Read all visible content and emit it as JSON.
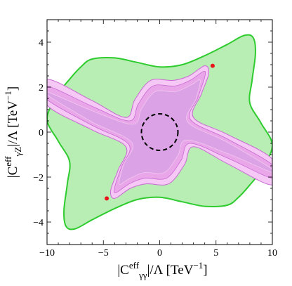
{
  "chart_data": {
    "type": "area",
    "title": "",
    "xlabel": {
      "main": "|C",
      "sup": "eff",
      "sub": "γγ",
      "rest": "|/Λ [TeV",
      "exp": "−1",
      "close": "]"
    },
    "ylabel": {
      "main": "|C",
      "sup": "eff",
      "sub": "γZ",
      "rest": "|/Λ [TeV",
      "exp": "−1",
      "close": "]"
    },
    "xlim": [
      -10,
      10
    ],
    "ylim": [
      -5,
      5
    ],
    "xticks": [
      -10,
      -5,
      0,
      5,
      10
    ],
    "xtick_labels": [
      "−10",
      "−5",
      "0",
      "5",
      "10"
    ],
    "yticks": [
      -4,
      -2,
      0,
      2,
      4
    ],
    "ytick_labels": [
      "−4",
      "−2",
      "0",
      "2",
      "4"
    ],
    "grid": false,
    "colors": {
      "green_fill": "#b8edb4",
      "green_line": "#2ecc2e",
      "pink_outer": "#f5c8f5",
      "pink_mid": "#e9a6e9",
      "pink_inner": "#dca2e6",
      "pink_line": "#c86ad2",
      "circle": "#000000",
      "point": "#e8141a"
    },
    "regions": {
      "green": [
        [
          -10,
          0.6
        ],
        [
          -9,
          1.7
        ],
        [
          -8,
          2.35
        ],
        [
          -7,
          2.9
        ],
        [
          -6,
          3.25
        ],
        [
          -4,
          3.3
        ],
        [
          -2,
          3.1
        ],
        [
          0,
          2.9
        ],
        [
          2,
          3.0
        ],
        [
          4,
          3.4
        ],
        [
          6,
          3.9
        ],
        [
          7.5,
          4.3
        ],
        [
          8.3,
          4.2
        ],
        [
          8.5,
          3.5
        ],
        [
          8.2,
          2.3
        ],
        [
          8.0,
          1.3
        ],
        [
          9,
          0.4
        ],
        [
          10,
          -0.6
        ],
        [
          9,
          -1.7
        ],
        [
          8,
          -2.35
        ],
        [
          7,
          -2.9
        ],
        [
          6,
          -3.25
        ],
        [
          4,
          -3.3
        ],
        [
          2,
          -3.1
        ],
        [
          0,
          -2.9
        ],
        [
          -2,
          -3.0
        ],
        [
          -4,
          -3.4
        ],
        [
          -6,
          -3.9
        ],
        [
          -7.5,
          -4.3
        ],
        [
          -8.3,
          -4.2
        ],
        [
          -8.5,
          -3.5
        ],
        [
          -8.2,
          -2.3
        ],
        [
          -8.0,
          -1.3
        ],
        [
          -9,
          -0.4
        ]
      ],
      "pink_outer": [
        [
          -10,
          2.35
        ],
        [
          -6,
          1.4
        ],
        [
          -3,
          0.65
        ],
        [
          -2.2,
          1.45
        ],
        [
          -0.8,
          2.3
        ],
        [
          1.2,
          2.3
        ],
        [
          2.6,
          2.5
        ],
        [
          4.0,
          2.95
        ],
        [
          4.35,
          2.6
        ],
        [
          3.7,
          1.7
        ],
        [
          3.0,
          0.65
        ],
        [
          6,
          -0.1
        ],
        [
          10,
          -1.2
        ],
        [
          10,
          -2.35
        ],
        [
          6,
          -1.4
        ],
        [
          3,
          -0.65
        ],
        [
          2.2,
          -1.45
        ],
        [
          0.8,
          -2.3
        ],
        [
          -1.2,
          -2.3
        ],
        [
          -2.6,
          -2.5
        ],
        [
          -4.0,
          -2.95
        ],
        [
          -4.35,
          -2.6
        ],
        [
          -3.7,
          -1.7
        ],
        [
          -3.0,
          -0.65
        ],
        [
          -6,
          0.1
        ],
        [
          -10,
          1.2
        ]
      ],
      "pink_mid": [
        [
          -10,
          2.05
        ],
        [
          -6,
          1.15
        ],
        [
          -2.7,
          0.5
        ],
        [
          -1.9,
          1.25
        ],
        [
          -0.6,
          2.05
        ],
        [
          1.3,
          2.05
        ],
        [
          2.7,
          2.3
        ],
        [
          3.9,
          2.7
        ],
        [
          4.0,
          2.45
        ],
        [
          3.4,
          1.55
        ],
        [
          2.75,
          0.55
        ],
        [
          6,
          -0.3
        ],
        [
          10,
          -1.45
        ],
        [
          10,
          -2.05
        ],
        [
          6,
          -1.15
        ],
        [
          2.7,
          -0.5
        ],
        [
          1.9,
          -1.25
        ],
        [
          0.6,
          -2.05
        ],
        [
          -1.3,
          -2.05
        ],
        [
          -2.7,
          -2.3
        ],
        [
          -3.9,
          -2.7
        ],
        [
          -4.0,
          -2.45
        ],
        [
          -3.4,
          -1.55
        ],
        [
          -2.75,
          -0.55
        ],
        [
          -6,
          0.3
        ],
        [
          -10,
          1.45
        ]
      ],
      "pink_inner": [
        [
          -10,
          1.8
        ],
        [
          -6,
          0.95
        ],
        [
          -2.4,
          0.35
        ],
        [
          -1.6,
          1.05
        ],
        [
          -0.4,
          1.8
        ],
        [
          1.4,
          1.8
        ],
        [
          2.8,
          2.1
        ],
        [
          3.6,
          2.3
        ],
        [
          3.2,
          1.45
        ],
        [
          2.5,
          0.45
        ],
        [
          6,
          -0.45
        ],
        [
          10,
          -1.65
        ],
        [
          10,
          -1.8
        ],
        [
          6,
          -0.95
        ],
        [
          2.4,
          -0.35
        ],
        [
          1.6,
          -1.05
        ],
        [
          0.4,
          -1.8
        ],
        [
          -1.4,
          -1.8
        ],
        [
          -2.8,
          -2.1
        ],
        [
          -3.6,
          -2.3
        ],
        [
          -3.2,
          -1.45
        ],
        [
          -2.5,
          -0.45
        ],
        [
          -6,
          0.45
        ],
        [
          -10,
          1.65
        ]
      ]
    },
    "circle": {
      "cx": 0,
      "cy": 0,
      "r": 1.62
    },
    "points": [
      {
        "x": 4.7,
        "y": 2.95
      },
      {
        "x": -4.7,
        "y": -2.95
      }
    ]
  }
}
